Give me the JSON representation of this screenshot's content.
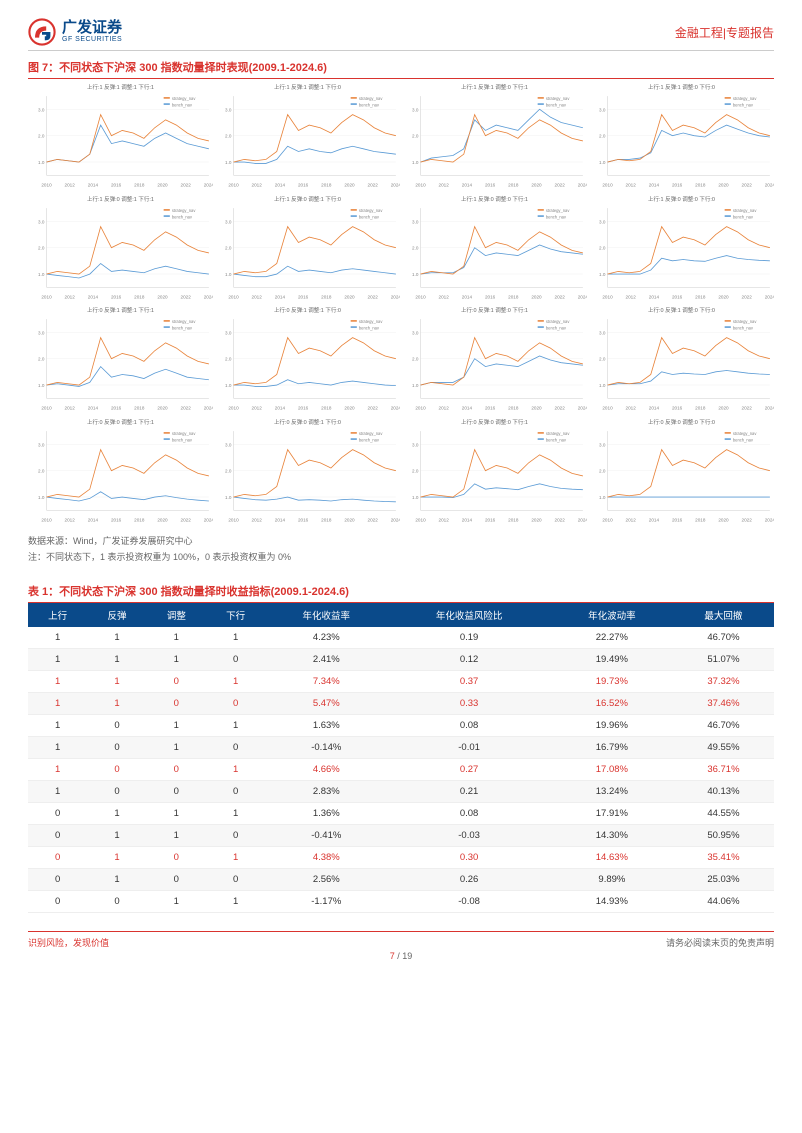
{
  "header": {
    "logo_cn": "广发证券",
    "logo_en": "GF SECURITIES",
    "category": "金融工程|专题报告"
  },
  "figure": {
    "title": "图 7：不同状态下沪深 300 指数动量择时表现(2009.1-2024.6)",
    "source": "数据来源：Wind，广发证券发展研究中心",
    "note": "注：不同状态下，1 表示投资权重为 100%，0 表示投资权重为 0%",
    "chart_style": {
      "line1_color": "#e8833a",
      "line2_color": "#5b9bd5",
      "bg_color": "#ffffff",
      "grid_color": "#f0f0f0",
      "x_years": [
        "2010",
        "2012",
        "2014",
        "2016",
        "2018",
        "2020",
        "2022",
        "2024"
      ],
      "ylim": [
        0.5,
        3.5
      ],
      "line_width": 0.8,
      "title_fontsize": 5.5,
      "axis_fontsize": 4.5
    },
    "charts": [
      {
        "title": "上行:1 反弹:1 调整:1 下行:1",
        "s1": [
          1.0,
          1.1,
          1.05,
          1.0,
          1.3,
          2.8,
          2.0,
          2.2,
          2.1,
          1.9,
          2.3,
          2.6,
          2.4,
          2.1,
          1.9,
          1.8
        ],
        "s2": [
          1.0,
          1.1,
          1.05,
          1.0,
          1.3,
          2.4,
          1.7,
          1.8,
          1.7,
          1.6,
          1.9,
          2.1,
          1.9,
          1.7,
          1.6,
          1.5
        ]
      },
      {
        "title": "上行:1 反弹:1 调整:1 下行:0",
        "s1": [
          1.0,
          1.1,
          1.05,
          1.1,
          1.4,
          2.8,
          2.2,
          2.4,
          2.3,
          2.1,
          2.5,
          2.8,
          2.6,
          2.3,
          2.1,
          2.0
        ],
        "s2": [
          1.0,
          1.0,
          0.95,
          0.95,
          1.1,
          1.6,
          1.4,
          1.5,
          1.4,
          1.35,
          1.5,
          1.6,
          1.5,
          1.4,
          1.35,
          1.3
        ]
      },
      {
        "title": "上行:1 反弹:1 调整:0 下行:1",
        "s1": [
          1.0,
          1.1,
          1.05,
          1.0,
          1.3,
          2.8,
          2.0,
          2.2,
          2.1,
          1.9,
          2.3,
          2.6,
          2.4,
          2.1,
          1.9,
          1.8
        ],
        "s2": [
          1.0,
          1.15,
          1.2,
          1.25,
          1.5,
          2.6,
          2.2,
          2.4,
          2.3,
          2.2,
          2.6,
          3.0,
          2.7,
          2.5,
          2.4,
          2.3
        ]
      },
      {
        "title": "上行:1 反弹:1 调整:0 下行:0",
        "s1": [
          1.0,
          1.1,
          1.05,
          1.1,
          1.4,
          2.8,
          2.2,
          2.4,
          2.3,
          2.1,
          2.5,
          2.8,
          2.6,
          2.3,
          2.1,
          2.0
        ],
        "s2": [
          1.0,
          1.1,
          1.1,
          1.15,
          1.35,
          2.2,
          2.0,
          2.1,
          2.0,
          1.95,
          2.2,
          2.4,
          2.25,
          2.1,
          2.0,
          1.95
        ]
      },
      {
        "title": "上行:1 反弹:0 调整:1 下行:1",
        "s1": [
          1.0,
          1.1,
          1.05,
          1.0,
          1.3,
          2.8,
          2.0,
          2.2,
          2.1,
          1.9,
          2.3,
          2.6,
          2.4,
          2.1,
          1.9,
          1.8
        ],
        "s2": [
          1.0,
          0.95,
          0.9,
          0.85,
          1.0,
          1.4,
          1.1,
          1.15,
          1.1,
          1.05,
          1.2,
          1.3,
          1.2,
          1.1,
          1.05,
          1.0
        ]
      },
      {
        "title": "上行:1 反弹:0 调整:1 下行:0",
        "s1": [
          1.0,
          1.1,
          1.05,
          1.1,
          1.4,
          2.8,
          2.2,
          2.4,
          2.3,
          2.1,
          2.5,
          2.8,
          2.6,
          2.3,
          2.1,
          2.0
        ],
        "s2": [
          1.0,
          0.95,
          0.9,
          0.9,
          1.0,
          1.3,
          1.1,
          1.15,
          1.1,
          1.05,
          1.15,
          1.2,
          1.15,
          1.1,
          1.05,
          1.0
        ]
      },
      {
        "title": "上行:1 反弹:0 调整:0 下行:1",
        "s1": [
          1.0,
          1.1,
          1.05,
          1.0,
          1.3,
          2.8,
          2.0,
          2.2,
          2.1,
          1.9,
          2.3,
          2.6,
          2.4,
          2.1,
          1.9,
          1.8
        ],
        "s2": [
          1.0,
          1.05,
          1.05,
          1.05,
          1.25,
          2.0,
          1.7,
          1.8,
          1.75,
          1.7,
          1.9,
          2.1,
          1.95,
          1.85,
          1.8,
          1.75
        ]
      },
      {
        "title": "上行:1 反弹:0 调整:0 下行:0",
        "s1": [
          1.0,
          1.1,
          1.05,
          1.1,
          1.4,
          2.8,
          2.2,
          2.4,
          2.3,
          2.1,
          2.5,
          2.8,
          2.6,
          2.3,
          2.1,
          2.0
        ],
        "s2": [
          1.0,
          1.0,
          1.0,
          1.0,
          1.15,
          1.6,
          1.5,
          1.55,
          1.5,
          1.48,
          1.6,
          1.7,
          1.6,
          1.55,
          1.52,
          1.5
        ]
      },
      {
        "title": "上行:0 反弹:1 调整:1 下行:1",
        "s1": [
          1.0,
          1.1,
          1.05,
          1.0,
          1.3,
          2.8,
          2.0,
          2.2,
          2.1,
          1.9,
          2.3,
          2.6,
          2.4,
          2.1,
          1.9,
          1.8
        ],
        "s2": [
          1.0,
          1.05,
          1.0,
          0.95,
          1.1,
          1.7,
          1.3,
          1.4,
          1.35,
          1.25,
          1.45,
          1.6,
          1.45,
          1.3,
          1.25,
          1.2
        ]
      },
      {
        "title": "上行:0 反弹:1 调整:1 下行:0",
        "s1": [
          1.0,
          1.1,
          1.05,
          1.1,
          1.4,
          2.8,
          2.2,
          2.4,
          2.3,
          2.1,
          2.5,
          2.8,
          2.6,
          2.3,
          2.1,
          2.0
        ],
        "s2": [
          1.0,
          1.0,
          0.95,
          0.95,
          1.0,
          1.2,
          1.05,
          1.1,
          1.05,
          1.0,
          1.1,
          1.15,
          1.1,
          1.05,
          1.0,
          0.98
        ]
      },
      {
        "title": "上行:0 反弹:1 调整:0 下行:1",
        "s1": [
          1.0,
          1.1,
          1.05,
          1.0,
          1.3,
          2.8,
          2.0,
          2.2,
          2.1,
          1.9,
          2.3,
          2.6,
          2.4,
          2.1,
          1.9,
          1.8
        ],
        "s2": [
          1.0,
          1.1,
          1.1,
          1.1,
          1.3,
          2.0,
          1.7,
          1.8,
          1.75,
          1.7,
          1.9,
          2.1,
          1.95,
          1.85,
          1.8,
          1.75
        ]
      },
      {
        "title": "上行:0 反弹:1 调整:0 下行:0",
        "s1": [
          1.0,
          1.1,
          1.05,
          1.1,
          1.4,
          2.8,
          2.2,
          2.4,
          2.3,
          2.1,
          2.5,
          2.8,
          2.6,
          2.3,
          2.1,
          2.0
        ],
        "s2": [
          1.0,
          1.05,
          1.05,
          1.05,
          1.15,
          1.5,
          1.4,
          1.45,
          1.42,
          1.4,
          1.5,
          1.55,
          1.5,
          1.45,
          1.42,
          1.4
        ]
      },
      {
        "title": "上行:0 反弹:0 调整:1 下行:1",
        "s1": [
          1.0,
          1.1,
          1.05,
          1.0,
          1.3,
          2.8,
          2.0,
          2.2,
          2.1,
          1.9,
          2.3,
          2.6,
          2.4,
          2.1,
          1.9,
          1.8
        ],
        "s2": [
          1.0,
          0.95,
          0.9,
          0.85,
          0.95,
          1.2,
          0.95,
          1.0,
          0.95,
          0.9,
          1.0,
          1.05,
          0.98,
          0.92,
          0.88,
          0.85
        ]
      },
      {
        "title": "上行:0 反弹:0 调整:1 下行:0",
        "s1": [
          1.0,
          1.1,
          1.05,
          1.1,
          1.4,
          2.8,
          2.2,
          2.4,
          2.3,
          2.1,
          2.5,
          2.8,
          2.6,
          2.3,
          2.1,
          2.0
        ],
        "s2": [
          1.0,
          0.95,
          0.9,
          0.88,
          0.92,
          1.0,
          0.88,
          0.9,
          0.88,
          0.85,
          0.9,
          0.92,
          0.88,
          0.85,
          0.83,
          0.82
        ]
      },
      {
        "title": "上行:0 反弹:0 调整:0 下行:1",
        "s1": [
          1.0,
          1.1,
          1.05,
          1.0,
          1.3,
          2.8,
          2.0,
          2.2,
          2.1,
          1.9,
          2.3,
          2.6,
          2.4,
          2.1,
          1.9,
          1.8
        ],
        "s2": [
          1.0,
          1.0,
          1.0,
          0.98,
          1.1,
          1.5,
          1.3,
          1.35,
          1.32,
          1.28,
          1.4,
          1.5,
          1.4,
          1.33,
          1.3,
          1.28
        ]
      },
      {
        "title": "上行:0 反弹:0 调整:0 下行:0",
        "s1": [
          1.0,
          1.1,
          1.05,
          1.1,
          1.4,
          2.8,
          2.2,
          2.4,
          2.3,
          2.1,
          2.5,
          2.8,
          2.6,
          2.3,
          2.1,
          2.0
        ],
        "s2": [
          1.0,
          1.0,
          1.0,
          1.0,
          1.0,
          1.0,
          1.0,
          1.0,
          1.0,
          1.0,
          1.0,
          1.0,
          1.0,
          1.0,
          1.0,
          1.0
        ]
      }
    ]
  },
  "table": {
    "title": "表 1：不同状态下沪深 300 指数动量择时收益指标(2009.1-2024.6)",
    "columns": [
      "上行",
      "反弹",
      "调整",
      "下行",
      "年化收益率",
      "年化收益风险比",
      "年化波动率",
      "最大回撤"
    ],
    "highlight_color": "#d9332e",
    "normal_color": "#333333",
    "rows": [
      {
        "cells": [
          "1",
          "1",
          "1",
          "1",
          "4.23%",
          "0.19",
          "22.27%",
          "46.70%"
        ],
        "hl": false
      },
      {
        "cells": [
          "1",
          "1",
          "1",
          "0",
          "2.41%",
          "0.12",
          "19.49%",
          "51.07%"
        ],
        "hl": false
      },
      {
        "cells": [
          "1",
          "1",
          "0",
          "1",
          "7.34%",
          "0.37",
          "19.73%",
          "37.32%"
        ],
        "hl": true
      },
      {
        "cells": [
          "1",
          "1",
          "0",
          "0",
          "5.47%",
          "0.33",
          "16.52%",
          "37.46%"
        ],
        "hl": true
      },
      {
        "cells": [
          "1",
          "0",
          "1",
          "1",
          "1.63%",
          "0.08",
          "19.96%",
          "46.70%"
        ],
        "hl": false
      },
      {
        "cells": [
          "1",
          "0",
          "1",
          "0",
          "-0.14%",
          "-0.01",
          "16.79%",
          "49.55%"
        ],
        "hl": false
      },
      {
        "cells": [
          "1",
          "0",
          "0",
          "1",
          "4.66%",
          "0.27",
          "17.08%",
          "36.71%"
        ],
        "hl": true
      },
      {
        "cells": [
          "1",
          "0",
          "0",
          "0",
          "2.83%",
          "0.21",
          "13.24%",
          "40.13%"
        ],
        "hl": false
      },
      {
        "cells": [
          "0",
          "1",
          "1",
          "1",
          "1.36%",
          "0.08",
          "17.91%",
          "44.55%"
        ],
        "hl": false
      },
      {
        "cells": [
          "0",
          "1",
          "1",
          "0",
          "-0.41%",
          "-0.03",
          "14.30%",
          "50.95%"
        ],
        "hl": false
      },
      {
        "cells": [
          "0",
          "1",
          "0",
          "1",
          "4.38%",
          "0.30",
          "14.63%",
          "35.41%"
        ],
        "hl": true
      },
      {
        "cells": [
          "0",
          "1",
          "0",
          "0",
          "2.56%",
          "0.26",
          "9.89%",
          "25.03%"
        ],
        "hl": false
      },
      {
        "cells": [
          "0",
          "0",
          "1",
          "1",
          "-1.17%",
          "-0.08",
          "14.93%",
          "44.06%"
        ],
        "hl": false
      }
    ]
  },
  "footer": {
    "left": "识别风险，发现价值",
    "right": "请务必阅读末页的免责声明",
    "page_current": "7",
    "page_sep": " / ",
    "page_total": "19"
  }
}
